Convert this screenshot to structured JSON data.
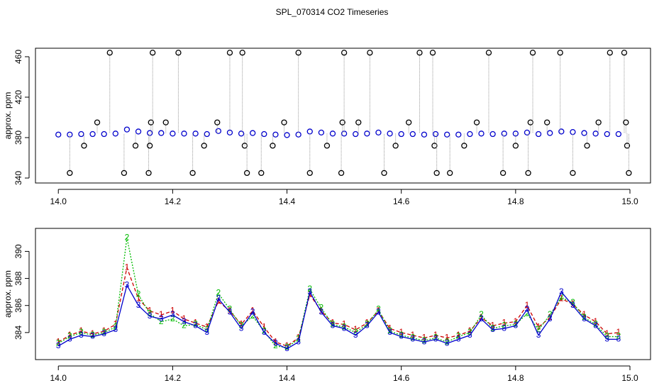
{
  "title": "SPL_070314  CO2 Timeseries",
  "chart_data": [
    {
      "type": "scatter",
      "ylabel": "approx. ppm",
      "xlim": [
        13.96,
        15.036
      ],
      "ylim": [
        335.1,
        468.4
      ],
      "xticks": [
        {
          "value": 14,
          "label": "14.0"
        },
        14.2,
        14.4,
        14.6,
        14.8,
        {
          "value": 15,
          "label": "15.0"
        }
      ],
      "yticks": [
        340,
        380,
        420,
        460
      ],
      "series": [
        {
          "color": "#0000cc",
          "x": [
            14.0,
            14.02,
            14.04,
            14.06,
            14.08,
            14.1,
            14.12,
            14.14,
            14.16,
            14.18,
            14.2,
            14.22,
            14.24,
            14.26,
            14.28,
            14.3,
            14.32,
            14.34,
            14.36,
            14.38,
            14.4,
            14.42,
            14.44,
            14.46,
            14.48,
            14.5,
            14.52,
            14.54,
            14.56,
            14.58,
            14.6,
            14.62,
            14.64,
            14.66,
            14.68,
            14.7,
            14.72,
            14.74,
            14.76,
            14.78,
            14.8,
            14.82,
            14.84,
            14.86,
            14.88,
            14.9,
            14.92,
            14.94,
            14.96,
            14.98
          ],
          "values": [
            383,
            383,
            383.5,
            383.5,
            383.5,
            384,
            388,
            386,
            384.5,
            384.5,
            384,
            384,
            384,
            383.5,
            386.5,
            385,
            384,
            384.5,
            383.5,
            383,
            382.5,
            383,
            386,
            385,
            384,
            384,
            383.5,
            384,
            385,
            384,
            383.5,
            383.5,
            383,
            383.5,
            383,
            383,
            383.5,
            384,
            383.5,
            384,
            384,
            385,
            383.5,
            384.5,
            386,
            385.5,
            384.5,
            384,
            383.5,
            383.5
          ]
        },
        {
          "color": "#000000",
          "x": [
            14.02,
            14.045,
            14.068,
            14.09,
            14.115,
            14.135,
            14.158,
            14.16,
            14.162,
            14.165,
            14.188,
            14.21,
            14.235,
            14.255,
            14.278,
            14.3,
            14.322,
            14.326,
            14.33,
            14.355,
            14.375,
            14.395,
            14.42,
            14.44,
            14.47,
            14.495,
            14.497,
            14.5,
            14.525,
            14.545,
            14.57,
            14.59,
            14.613,
            14.632,
            14.655,
            14.658,
            14.662,
            14.685,
            14.71,
            14.732,
            14.753,
            14.778,
            14.8,
            14.822,
            14.826,
            14.83,
            14.855,
            14.878,
            14.9,
            14.925,
            14.945,
            14.965,
            14.99,
            14.993,
            14.995,
            14.998
          ],
          "values": [
            345,
            372,
            395,
            464,
            345,
            372,
            345,
            372,
            395,
            464,
            395,
            464,
            345,
            372,
            395,
            464,
            464,
            372,
            345,
            345,
            372,
            395,
            464,
            345,
            372,
            345,
            395,
            464,
            395,
            464,
            345,
            372,
            395,
            464,
            464,
            372,
            345,
            345,
            372,
            395,
            464,
            345,
            372,
            345,
            395,
            464,
            395,
            464,
            345,
            372,
            395,
            464,
            464,
            395,
            372,
            345
          ]
        }
      ]
    },
    {
      "type": "line",
      "ylabel": "approx. ppm",
      "xlim": [
        13.96,
        15.036
      ],
      "ylim": [
        382.0,
        391.7
      ],
      "xticks": [
        {
          "value": 14,
          "label": "14.0"
        },
        14.2,
        14.4,
        14.6,
        14.8,
        {
          "value": 15,
          "label": "15.0"
        }
      ],
      "yticks": [
        384,
        386,
        388,
        390
      ],
      "x": [
        14.0,
        14.02,
        14.04,
        14.06,
        14.08,
        14.1,
        14.12,
        14.14,
        14.16,
        14.18,
        14.2,
        14.22,
        14.24,
        14.26,
        14.28,
        14.3,
        14.32,
        14.34,
        14.36,
        14.38,
        14.4,
        14.42,
        14.44,
        14.46,
        14.48,
        14.5,
        14.52,
        14.54,
        14.56,
        14.58,
        14.6,
        14.62,
        14.64,
        14.66,
        14.68,
        14.7,
        14.72,
        14.74,
        14.76,
        14.78,
        14.8,
        14.82,
        14.84,
        14.86,
        14.88,
        14.9,
        14.92,
        14.94,
        14.96,
        14.98
      ],
      "series": [
        {
          "name": "1",
          "color": "#cc0000",
          "values": [
            383.3,
            383.8,
            384.1,
            383.9,
            384.1,
            384.6,
            388.8,
            386.5,
            385.6,
            385.3,
            385.6,
            385.0,
            384.7,
            384.4,
            386.3,
            385.6,
            384.6,
            385.6,
            384.4,
            383.3,
            383.0,
            383.6,
            386.8,
            385.6,
            384.7,
            384.6,
            384.2,
            384.7,
            385.6,
            384.3,
            384.0,
            383.8,
            383.6,
            383.8,
            383.6,
            383.8,
            384.1,
            385.1,
            384.5,
            384.7,
            384.8,
            386.0,
            384.4,
            385.1,
            386.5,
            386.1,
            385.3,
            384.8,
            383.9,
            384.0
          ]
        },
        {
          "name": "2",
          "color": "#00bb00",
          "values": [
            383.2,
            383.7,
            384.0,
            383.8,
            384.0,
            384.4,
            391.0,
            386.8,
            385.4,
            384.8,
            385.0,
            384.5,
            384.6,
            384.2,
            386.9,
            385.7,
            384.5,
            385.2,
            384.1,
            383.0,
            382.9,
            383.5,
            387.2,
            385.8,
            384.6,
            384.4,
            384.0,
            384.6,
            385.7,
            384.1,
            383.8,
            383.6,
            383.4,
            383.6,
            383.3,
            383.7,
            384.0,
            385.3,
            384.3,
            384.5,
            384.6,
            385.4,
            384.2,
            385.3,
            386.6,
            386.2,
            385.1,
            384.6,
            383.7,
            383.7
          ]
        },
        {
          "name": "3",
          "color": "#0000cc",
          "values": [
            383.0,
            383.5,
            383.8,
            383.7,
            383.9,
            384.2,
            387.5,
            386.0,
            385.2,
            385.0,
            385.3,
            384.8,
            384.5,
            384.0,
            386.5,
            385.5,
            384.3,
            385.5,
            384.0,
            383.2,
            382.8,
            383.3,
            387.0,
            385.5,
            384.5,
            384.3,
            383.8,
            384.5,
            385.5,
            384.0,
            383.7,
            383.5,
            383.3,
            383.5,
            383.2,
            383.5,
            383.8,
            385.0,
            384.2,
            384.3,
            384.5,
            385.7,
            383.8,
            385.0,
            387.0,
            386.0,
            385.0,
            384.5,
            383.5,
            383.5
          ]
        }
      ]
    }
  ]
}
